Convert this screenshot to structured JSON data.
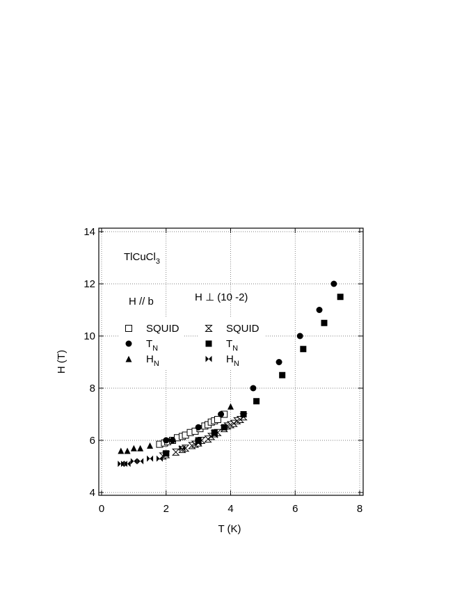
{
  "chart_data": {
    "type": "scatter",
    "xlabel": "T (K)",
    "ylabel": "H (T)",
    "xlim": [
      0,
      8
    ],
    "xticks": [
      0,
      2,
      4,
      6,
      8
    ],
    "ylim": [
      4,
      14
    ],
    "yticks": [
      4,
      6,
      8,
      10,
      12,
      14
    ],
    "grid": true,
    "annotations": [
      "TlCuCl_3",
      "H // b",
      "H ⊥ (10 -2)"
    ],
    "series": [
      {
        "name": "SQUID",
        "marker": "open-square",
        "color": "#000000",
        "x": [
          1.8,
          1.95,
          2.05,
          2.2,
          2.35,
          2.5,
          2.6,
          2.75,
          2.9,
          3.05,
          3.2,
          3.3,
          3.4,
          3.5,
          3.6,
          3.8
        ],
        "values": [
          5.85,
          5.9,
          5.95,
          6.0,
          6.1,
          6.15,
          6.2,
          6.3,
          6.35,
          6.45,
          6.55,
          6.6,
          6.7,
          6.75,
          6.8,
          7.0
        ]
      },
      {
        "name": "T_N",
        "marker": "circle",
        "color": "#000000",
        "x": [
          2.0,
          2.2,
          3.0,
          3.7,
          4.7,
          5.5,
          6.15,
          6.75,
          7.2
        ],
        "values": [
          6.0,
          6.0,
          6.5,
          7.0,
          8.0,
          9.0,
          10.0,
          11.0,
          12.0
        ]
      },
      {
        "name": "H_N",
        "marker": "triangle",
        "color": "#000000",
        "x": [
          0.6,
          0.8,
          1.0,
          1.2,
          1.5,
          4.0
        ],
        "values": [
          5.6,
          5.6,
          5.7,
          5.7,
          5.8,
          7.3
        ]
      },
      {
        "name": "SQUID",
        "marker": "hourglass",
        "color": "#000000",
        "x": [
          1.9,
          2.0,
          2.3,
          2.5,
          2.6,
          2.8,
          2.9,
          3.0,
          3.1,
          3.3,
          3.4,
          3.5,
          3.6,
          3.8,
          3.9,
          4.0,
          4.1,
          4.2,
          4.3,
          4.4
        ],
        "values": [
          5.4,
          5.45,
          5.55,
          5.65,
          5.7,
          5.8,
          5.85,
          5.9,
          6.0,
          6.05,
          6.15,
          6.25,
          6.3,
          6.45,
          6.55,
          6.6,
          6.65,
          6.75,
          6.8,
          6.9
        ]
      },
      {
        "name": "T_N",
        "marker": "square",
        "color": "#000000",
        "x": [
          2.0,
          3.0,
          3.5,
          3.8,
          4.4,
          4.8,
          5.6,
          6.25,
          6.9,
          7.4
        ],
        "values": [
          5.5,
          6.0,
          6.3,
          6.5,
          7.0,
          7.5,
          8.5,
          9.5,
          10.5,
          11.5
        ]
      },
      {
        "name": "H_N",
        "marker": "bowtie",
        "color": "#000000",
        "x": [
          0.6,
          0.7,
          0.8,
          1.0,
          1.2,
          1.5,
          1.8,
          2.0,
          2.5,
          3.0,
          3.5
        ],
        "values": [
          5.1,
          5.1,
          5.1,
          5.2,
          5.2,
          5.3,
          5.3,
          5.5,
          5.7,
          5.9,
          6.2
        ]
      }
    ]
  }
}
